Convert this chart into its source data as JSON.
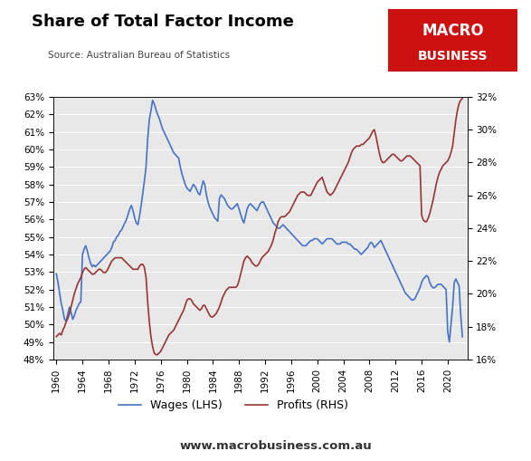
{
  "title": "Share of Total Factor Income",
  "source": "Source: Australian Bureau of Statistics",
  "watermark": "www.macrobusiness.com.au",
  "macro_logo_text1": "MACRO",
  "macro_logo_text2": "BUSINESS",
  "macro_logo_bg": "#cc1111",
  "wages_label": "Wages (LHS)",
  "profits_label": "Profits (RHS)",
  "wages_color": "#4472c4",
  "profits_color": "#993333",
  "background_color": "#e8e8e8",
  "lhs_ylim": [
    0.48,
    0.63
  ],
  "rhs_ylim": [
    0.16,
    0.32
  ],
  "lhs_yticks": [
    0.48,
    0.49,
    0.5,
    0.51,
    0.52,
    0.53,
    0.54,
    0.55,
    0.56,
    0.57,
    0.58,
    0.59,
    0.6,
    0.61,
    0.62,
    0.63
  ],
  "rhs_yticks": [
    0.16,
    0.18,
    0.2,
    0.22,
    0.24,
    0.26,
    0.28,
    0.3,
    0.32
  ],
  "xticks": [
    1960,
    1964,
    1968,
    1972,
    1976,
    1980,
    1984,
    1988,
    1992,
    1996,
    2000,
    2004,
    2008,
    2012,
    2016,
    2020
  ],
  "xlim": [
    1959.5,
    2023.0
  ],
  "wages_x": [
    1960.0,
    1960.25,
    1960.5,
    1960.75,
    1961.0,
    1961.25,
    1961.5,
    1961.75,
    1962.0,
    1962.25,
    1962.5,
    1962.75,
    1963.0,
    1963.25,
    1963.5,
    1963.75,
    1964.0,
    1964.25,
    1964.5,
    1964.75,
    1965.0,
    1965.25,
    1965.5,
    1965.75,
    1966.0,
    1966.25,
    1966.5,
    1966.75,
    1967.0,
    1967.25,
    1967.5,
    1967.75,
    1968.0,
    1968.25,
    1968.5,
    1968.75,
    1969.0,
    1969.25,
    1969.5,
    1969.75,
    1970.0,
    1970.25,
    1970.5,
    1970.75,
    1971.0,
    1971.25,
    1971.5,
    1971.75,
    1972.0,
    1972.25,
    1972.5,
    1972.75,
    1973.0,
    1973.25,
    1973.5,
    1973.75,
    1974.0,
    1974.25,
    1974.5,
    1974.75,
    1975.0,
    1975.25,
    1975.5,
    1975.75,
    1976.0,
    1976.25,
    1976.5,
    1976.75,
    1977.0,
    1977.25,
    1977.5,
    1977.75,
    1978.0,
    1978.25,
    1978.5,
    1978.75,
    1979.0,
    1979.25,
    1979.5,
    1979.75,
    1980.0,
    1980.25,
    1980.5,
    1980.75,
    1981.0,
    1981.25,
    1981.5,
    1981.75,
    1982.0,
    1982.25,
    1982.5,
    1982.75,
    1983.0,
    1983.25,
    1983.5,
    1983.75,
    1984.0,
    1984.25,
    1984.5,
    1984.75,
    1985.0,
    1985.25,
    1985.5,
    1985.75,
    1986.0,
    1986.25,
    1986.5,
    1986.75,
    1987.0,
    1987.25,
    1987.5,
    1987.75,
    1988.0,
    1988.25,
    1988.5,
    1988.75,
    1989.0,
    1989.25,
    1989.5,
    1989.75,
    1990.0,
    1990.25,
    1990.5,
    1990.75,
    1991.0,
    1991.25,
    1991.5,
    1991.75,
    1992.0,
    1992.25,
    1992.5,
    1992.75,
    1993.0,
    1993.25,
    1993.5,
    1993.75,
    1994.0,
    1994.25,
    1994.5,
    1994.75,
    1995.0,
    1995.25,
    1995.5,
    1995.75,
    1996.0,
    1996.25,
    1996.5,
    1996.75,
    1997.0,
    1997.25,
    1997.5,
    1997.75,
    1998.0,
    1998.25,
    1998.5,
    1998.75,
    1999.0,
    1999.25,
    1999.5,
    1999.75,
    2000.0,
    2000.25,
    2000.5,
    2000.75,
    2001.0,
    2001.25,
    2001.5,
    2001.75,
    2002.0,
    2002.25,
    2002.5,
    2002.75,
    2003.0,
    2003.25,
    2003.5,
    2003.75,
    2004.0,
    2004.25,
    2004.5,
    2004.75,
    2005.0,
    2005.25,
    2005.5,
    2005.75,
    2006.0,
    2006.25,
    2006.5,
    2006.75,
    2007.0,
    2007.25,
    2007.5,
    2007.75,
    2008.0,
    2008.25,
    2008.5,
    2008.75,
    2009.0,
    2009.25,
    2009.5,
    2009.75,
    2010.0,
    2010.25,
    2010.5,
    2010.75,
    2011.0,
    2011.25,
    2011.5,
    2011.75,
    2012.0,
    2012.25,
    2012.5,
    2012.75,
    2013.0,
    2013.25,
    2013.5,
    2013.75,
    2014.0,
    2014.25,
    2014.5,
    2014.75,
    2015.0,
    2015.25,
    2015.5,
    2015.75,
    2016.0,
    2016.25,
    2016.5,
    2016.75,
    2017.0,
    2017.25,
    2017.5,
    2017.75,
    2018.0,
    2018.25,
    2018.5,
    2018.75,
    2019.0,
    2019.25,
    2019.5,
    2019.75,
    2020.0,
    2020.25,
    2020.5,
    2020.75,
    2021.0,
    2021.25,
    2021.5,
    2021.75,
    2022.0,
    2022.25
  ],
  "wages_y": [
    0.529,
    0.524,
    0.518,
    0.512,
    0.508,
    0.503,
    0.502,
    0.506,
    0.51,
    0.507,
    0.503,
    0.505,
    0.508,
    0.51,
    0.512,
    0.513,
    0.54,
    0.543,
    0.545,
    0.542,
    0.538,
    0.535,
    0.533,
    0.534,
    0.533,
    0.534,
    0.535,
    0.536,
    0.537,
    0.538,
    0.539,
    0.54,
    0.541,
    0.542,
    0.544,
    0.547,
    0.548,
    0.55,
    0.551,
    0.553,
    0.554,
    0.556,
    0.558,
    0.56,
    0.563,
    0.566,
    0.568,
    0.565,
    0.561,
    0.558,
    0.557,
    0.562,
    0.568,
    0.575,
    0.582,
    0.59,
    0.606,
    0.617,
    0.622,
    0.628,
    0.626,
    0.623,
    0.62,
    0.618,
    0.615,
    0.612,
    0.61,
    0.608,
    0.606,
    0.604,
    0.602,
    0.6,
    0.598,
    0.597,
    0.596,
    0.595,
    0.59,
    0.586,
    0.583,
    0.58,
    0.578,
    0.577,
    0.576,
    0.578,
    0.58,
    0.579,
    0.577,
    0.575,
    0.574,
    0.578,
    0.582,
    0.58,
    0.574,
    0.57,
    0.567,
    0.565,
    0.563,
    0.561,
    0.56,
    0.559,
    0.572,
    0.574,
    0.573,
    0.572,
    0.57,
    0.568,
    0.567,
    0.566,
    0.566,
    0.567,
    0.568,
    0.569,
    0.566,
    0.563,
    0.56,
    0.558,
    0.562,
    0.566,
    0.568,
    0.569,
    0.568,
    0.567,
    0.566,
    0.565,
    0.567,
    0.569,
    0.57,
    0.57,
    0.568,
    0.566,
    0.564,
    0.562,
    0.56,
    0.558,
    0.557,
    0.556,
    0.555,
    0.555,
    0.556,
    0.557,
    0.556,
    0.555,
    0.554,
    0.553,
    0.552,
    0.551,
    0.55,
    0.549,
    0.548,
    0.547,
    0.546,
    0.545,
    0.545,
    0.545,
    0.546,
    0.547,
    0.548,
    0.548,
    0.549,
    0.549,
    0.549,
    0.548,
    0.547,
    0.546,
    0.547,
    0.548,
    0.549,
    0.549,
    0.549,
    0.549,
    0.548,
    0.547,
    0.546,
    0.546,
    0.546,
    0.547,
    0.547,
    0.547,
    0.547,
    0.546,
    0.546,
    0.545,
    0.544,
    0.543,
    0.543,
    0.542,
    0.541,
    0.54,
    0.541,
    0.542,
    0.543,
    0.544,
    0.546,
    0.547,
    0.546,
    0.544,
    0.545,
    0.546,
    0.547,
    0.548,
    0.546,
    0.544,
    0.542,
    0.54,
    0.538,
    0.536,
    0.534,
    0.532,
    0.53,
    0.528,
    0.526,
    0.524,
    0.522,
    0.52,
    0.518,
    0.517,
    0.516,
    0.515,
    0.514,
    0.514,
    0.515,
    0.517,
    0.519,
    0.521,
    0.524,
    0.526,
    0.527,
    0.528,
    0.527,
    0.524,
    0.522,
    0.521,
    0.521,
    0.522,
    0.523,
    0.523,
    0.523,
    0.522,
    0.521,
    0.52,
    0.496,
    0.49,
    0.5,
    0.51,
    0.524,
    0.526,
    0.524,
    0.522,
    0.505,
    0.493
  ],
  "profits_x": [
    1960.0,
    1960.25,
    1960.5,
    1960.75,
    1961.0,
    1961.25,
    1961.5,
    1961.75,
    1962.0,
    1962.25,
    1962.5,
    1962.75,
    1963.0,
    1963.25,
    1963.5,
    1963.75,
    1964.0,
    1964.25,
    1964.5,
    1964.75,
    1965.0,
    1965.25,
    1965.5,
    1965.75,
    1966.0,
    1966.25,
    1966.5,
    1966.75,
    1967.0,
    1967.25,
    1967.5,
    1967.75,
    1968.0,
    1968.25,
    1968.5,
    1968.75,
    1969.0,
    1969.25,
    1969.5,
    1969.75,
    1970.0,
    1970.25,
    1970.5,
    1970.75,
    1971.0,
    1971.25,
    1971.5,
    1971.75,
    1972.0,
    1972.25,
    1972.5,
    1972.75,
    1973.0,
    1973.25,
    1973.5,
    1973.75,
    1974.0,
    1974.25,
    1974.5,
    1974.75,
    1975.0,
    1975.25,
    1975.5,
    1975.75,
    1976.0,
    1976.25,
    1976.5,
    1976.75,
    1977.0,
    1977.25,
    1977.5,
    1977.75,
    1978.0,
    1978.25,
    1978.5,
    1978.75,
    1979.0,
    1979.25,
    1979.5,
    1979.75,
    1980.0,
    1980.25,
    1980.5,
    1980.75,
    1981.0,
    1981.25,
    1981.5,
    1981.75,
    1982.0,
    1982.25,
    1982.5,
    1982.75,
    1983.0,
    1983.25,
    1983.5,
    1983.75,
    1984.0,
    1984.25,
    1984.5,
    1984.75,
    1985.0,
    1985.25,
    1985.5,
    1985.75,
    1986.0,
    1986.25,
    1986.5,
    1986.75,
    1987.0,
    1987.25,
    1987.5,
    1987.75,
    1988.0,
    1988.25,
    1988.5,
    1988.75,
    1989.0,
    1989.25,
    1989.5,
    1989.75,
    1990.0,
    1990.25,
    1990.5,
    1990.75,
    1991.0,
    1991.25,
    1991.5,
    1991.75,
    1992.0,
    1992.25,
    1992.5,
    1992.75,
    1993.0,
    1993.25,
    1993.5,
    1993.75,
    1994.0,
    1994.25,
    1994.5,
    1994.75,
    1995.0,
    1995.25,
    1995.5,
    1995.75,
    1996.0,
    1996.25,
    1996.5,
    1996.75,
    1997.0,
    1997.25,
    1997.5,
    1997.75,
    1998.0,
    1998.25,
    1998.5,
    1998.75,
    1999.0,
    1999.25,
    1999.5,
    1999.75,
    2000.0,
    2000.25,
    2000.5,
    2000.75,
    2001.0,
    2001.25,
    2001.5,
    2001.75,
    2002.0,
    2002.25,
    2002.5,
    2002.75,
    2003.0,
    2003.25,
    2003.5,
    2003.75,
    2004.0,
    2004.25,
    2004.5,
    2004.75,
    2005.0,
    2005.25,
    2005.5,
    2005.75,
    2006.0,
    2006.25,
    2006.5,
    2006.75,
    2007.0,
    2007.25,
    2007.5,
    2007.75,
    2008.0,
    2008.25,
    2008.5,
    2008.75,
    2009.0,
    2009.25,
    2009.5,
    2009.75,
    2010.0,
    2010.25,
    2010.5,
    2010.75,
    2011.0,
    2011.25,
    2011.5,
    2011.75,
    2012.0,
    2012.25,
    2012.5,
    2012.75,
    2013.0,
    2013.25,
    2013.5,
    2013.75,
    2014.0,
    2014.25,
    2014.5,
    2014.75,
    2015.0,
    2015.25,
    2015.5,
    2015.75,
    2016.0,
    2016.25,
    2016.5,
    2016.75,
    2017.0,
    2017.25,
    2017.5,
    2017.75,
    2018.0,
    2018.25,
    2018.5,
    2018.75,
    2019.0,
    2019.25,
    2019.5,
    2019.75,
    2020.0,
    2020.25,
    2020.5,
    2020.75,
    2021.0,
    2021.25,
    2021.5,
    2021.75,
    2022.0,
    2022.25
  ],
  "profits_y": [
    0.174,
    0.175,
    0.176,
    0.175,
    0.178,
    0.18,
    0.183,
    0.185,
    0.188,
    0.192,
    0.196,
    0.2,
    0.203,
    0.206,
    0.208,
    0.21,
    0.213,
    0.215,
    0.216,
    0.215,
    0.214,
    0.213,
    0.212,
    0.212,
    0.213,
    0.214,
    0.215,
    0.215,
    0.214,
    0.213,
    0.213,
    0.214,
    0.216,
    0.218,
    0.22,
    0.221,
    0.222,
    0.222,
    0.222,
    0.222,
    0.222,
    0.221,
    0.22,
    0.219,
    0.218,
    0.217,
    0.216,
    0.215,
    0.215,
    0.215,
    0.215,
    0.217,
    0.218,
    0.218,
    0.216,
    0.21,
    0.195,
    0.183,
    0.174,
    0.168,
    0.164,
    0.163,
    0.163,
    0.164,
    0.165,
    0.167,
    0.169,
    0.171,
    0.173,
    0.175,
    0.176,
    0.177,
    0.178,
    0.18,
    0.182,
    0.184,
    0.186,
    0.188,
    0.19,
    0.193,
    0.196,
    0.197,
    0.197,
    0.196,
    0.194,
    0.193,
    0.192,
    0.191,
    0.19,
    0.191,
    0.193,
    0.193,
    0.191,
    0.189,
    0.187,
    0.186,
    0.186,
    0.187,
    0.188,
    0.19,
    0.192,
    0.195,
    0.198,
    0.2,
    0.202,
    0.203,
    0.204,
    0.204,
    0.204,
    0.204,
    0.204,
    0.205,
    0.208,
    0.212,
    0.216,
    0.22,
    0.222,
    0.223,
    0.222,
    0.221,
    0.219,
    0.218,
    0.217,
    0.217,
    0.218,
    0.22,
    0.222,
    0.223,
    0.224,
    0.225,
    0.226,
    0.228,
    0.23,
    0.233,
    0.237,
    0.24,
    0.244,
    0.246,
    0.247,
    0.247,
    0.247,
    0.248,
    0.249,
    0.25,
    0.252,
    0.254,
    0.256,
    0.258,
    0.26,
    0.261,
    0.262,
    0.262,
    0.262,
    0.261,
    0.26,
    0.26,
    0.26,
    0.262,
    0.264,
    0.266,
    0.268,
    0.269,
    0.27,
    0.271,
    0.268,
    0.265,
    0.262,
    0.261,
    0.26,
    0.261,
    0.262,
    0.264,
    0.266,
    0.268,
    0.27,
    0.272,
    0.274,
    0.276,
    0.278,
    0.28,
    0.283,
    0.286,
    0.288,
    0.289,
    0.29,
    0.29,
    0.29,
    0.291,
    0.291,
    0.292,
    0.293,
    0.294,
    0.295,
    0.297,
    0.299,
    0.3,
    0.296,
    0.291,
    0.286,
    0.282,
    0.28,
    0.28,
    0.281,
    0.282,
    0.283,
    0.284,
    0.285,
    0.285,
    0.284,
    0.283,
    0.282,
    0.281,
    0.281,
    0.282,
    0.283,
    0.284,
    0.284,
    0.284,
    0.283,
    0.282,
    0.281,
    0.28,
    0.279,
    0.278,
    0.248,
    0.245,
    0.244,
    0.244,
    0.246,
    0.249,
    0.253,
    0.257,
    0.262,
    0.267,
    0.271,
    0.274,
    0.276,
    0.278,
    0.279,
    0.28,
    0.281,
    0.283,
    0.286,
    0.29,
    0.298,
    0.306,
    0.312,
    0.316,
    0.318,
    0.319
  ]
}
